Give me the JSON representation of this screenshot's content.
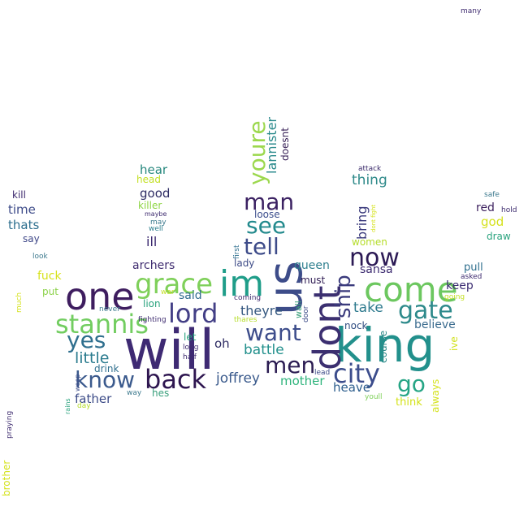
{
  "words": {
    "will": "will",
    "king": "king",
    "us": "us",
    "dont": "dont",
    "im": "im",
    "one": "one",
    "come": "come",
    "grace": "grace",
    "lord": "lord",
    "stannis": "stannis",
    "youre": "youre",
    "man": "man",
    "now": "now",
    "gate": "gate",
    "city": "city",
    "back": "back",
    "know": "know",
    "yes": "yes",
    "see": "see",
    "tell": "tell",
    "want": "want",
    "men": "men",
    "ship": "ship",
    "go": "go",
    "little": "little",
    "battle": "battle",
    "theyre": "theyre",
    "joffrey": "joffrey",
    "lannister": "lannister",
    "doesnt": "doesnt",
    "thing": "thing",
    "bring": "bring",
    "take": "take",
    "father": "father",
    "time": "time",
    "thats": "thats",
    "kill": "kill",
    "say": "say",
    "good": "good",
    "hear": "hear",
    "head": "head",
    "killer": "killer",
    "ill": "ill",
    "archers": "archers",
    "said": "said",
    "fuck": "fuck",
    "put": "put",
    "lion": "lion",
    "oh": "oh",
    "drink": "drink",
    "hes": "hes",
    "mother": "mother",
    "heave": "heave",
    "queen": "queen",
    "must": "must",
    "sansa": "sansa",
    "keep": "keep",
    "believe": "believe",
    "red": "red",
    "god": "god",
    "draw": "draw",
    "pull": "pull",
    "asked": "asked",
    "going": "going",
    "ive": "ive",
    "always": "always",
    "think": "think",
    "youll": "youll",
    "women": "women",
    "attack": "attack",
    "safe": "safe",
    "hold": "hold",
    "many": "many",
    "loose": "loose",
    "first": "first",
    "lady": "lady",
    "coming": "coming",
    "wall": "wall",
    "door": "door",
    "nock": "nock",
    "course": "course",
    "lead": "lead",
    "let": "let",
    "long": "long",
    "half": "half",
    "way": "way",
    "day": "day",
    "fighting": "fighting",
    "never": "never",
    "war": "war",
    "maybe": "maybe",
    "may": "may",
    "well": "well",
    "look": "look",
    "much": "much",
    "praying": "praying",
    "brother": "brother",
    "rains": "rains",
    "weep": "weep",
    "dont_fight": "dont fight",
    "thares": "thares"
  }
}
